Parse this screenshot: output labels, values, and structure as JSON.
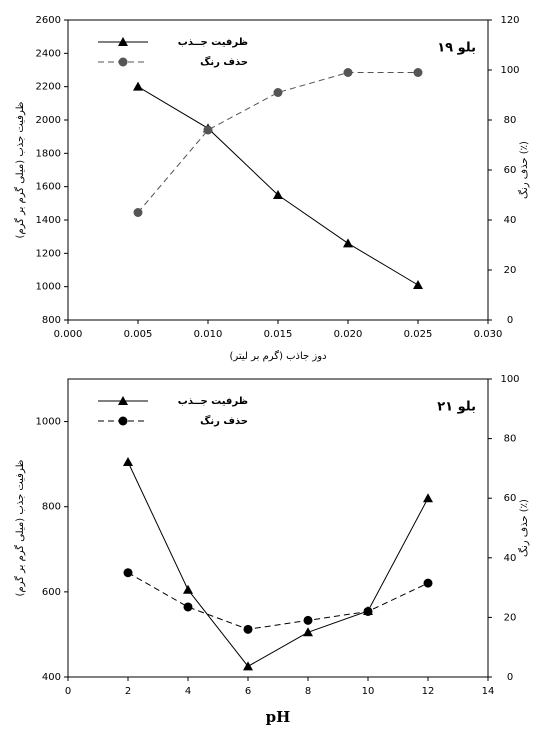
{
  "chart_data": [
    {
      "type": "line",
      "title": "بلو ۱۹",
      "xlabel": "دوز جاذب (گرم بر لیتر)",
      "ylabel": "ظرفیت جذب (میلی گرم بر گرم)",
      "y2label": "حذف رنگ (٪)",
      "x": [
        0.005,
        0.01,
        0.015,
        0.02,
        0.025
      ],
      "series": [
        {
          "name": "ظرفیت جــذب",
          "color": "#000000",
          "marker": "triangle",
          "dashed": false,
          "values": [
            2200,
            1950,
            1550,
            1260,
            1010
          ]
        },
        {
          "name": "حذف رنگ",
          "color": "#555555",
          "marker": "circle",
          "dashed": true,
          "axis": "y2",
          "values": [
            43,
            76,
            91,
            99,
            99
          ]
        }
      ],
      "xlim": [
        0,
        0.03
      ],
      "xticks": [
        {
          "value": 0,
          "label": "0.000"
        },
        {
          "value": 0.005,
          "label": "0.005"
        },
        {
          "value": 0.01,
          "label": "0.010"
        },
        {
          "value": 0.015,
          "label": "0.015"
        },
        {
          "value": 0.02,
          "label": "0.020"
        },
        {
          "value": 0.025,
          "label": "0.025"
        },
        {
          "value": 0.03,
          "label": "0.030"
        }
      ],
      "ylim": [
        800,
        2600
      ],
      "yticks": [
        800,
        1000,
        1200,
        1400,
        1600,
        1800,
        2000,
        2200,
        2400,
        2600
      ],
      "y2lim": [
        0,
        120
      ],
      "y2ticks": [
        0,
        20,
        40,
        60,
        80,
        100,
        120
      ]
    },
    {
      "type": "line",
      "title": "بلو ۲۱",
      "xlabel": "pH",
      "ylabel": "ظرفیت جذب (میلی گرم بر گرم)",
      "y2label": "حذف رنگ (٪)",
      "x": [
        2,
        4,
        6,
        8,
        10,
        12
      ],
      "series": [
        {
          "name": "ظرفیت جــذب",
          "color": "#000000",
          "marker": "triangle",
          "dashed": false,
          "values": [
            905,
            605,
            425,
            505,
            555,
            820
          ]
        },
        {
          "name": "حذف رنگ",
          "color": "#000000",
          "marker": "circle",
          "dashed": true,
          "axis": "y2",
          "values": [
            35,
            23.5,
            16,
            19,
            22,
            31.5
          ]
        }
      ],
      "xlim": [
        0,
        14
      ],
      "xticks": [
        0,
        2,
        4,
        6,
        8,
        10,
        12,
        14
      ],
      "ylim": [
        400,
        1100
      ],
      "yticks": [
        400,
        600,
        800,
        1000
      ],
      "y2lim": [
        0,
        100
      ],
      "y2ticks": [
        0,
        20,
        40,
        60,
        80,
        100
      ]
    }
  ]
}
